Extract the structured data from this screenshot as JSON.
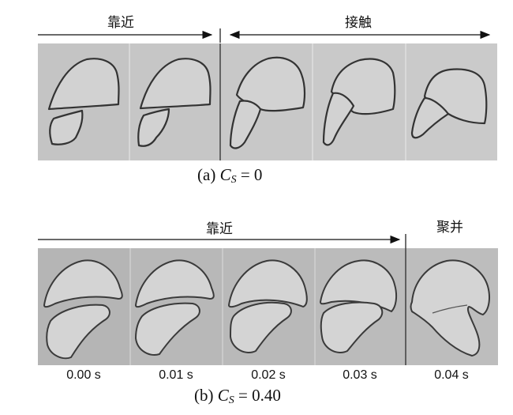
{
  "figure_a": {
    "phase_approach": "靠近",
    "phase_contact": "接触",
    "caption_prefix": "(a) ",
    "caption_var": "C",
    "caption_sub": "S",
    "caption_value": " = 0"
  },
  "figure_b": {
    "phase_approach": "靠近",
    "phase_coalescence": "聚并",
    "caption_prefix": "(b) ",
    "caption_var": "C",
    "caption_sub": "S",
    "caption_value": " = 0.40",
    "times": [
      "0.00 s",
      "0.01 s",
      "0.02 s",
      "0.03 s",
      "0.04 s"
    ]
  }
}
